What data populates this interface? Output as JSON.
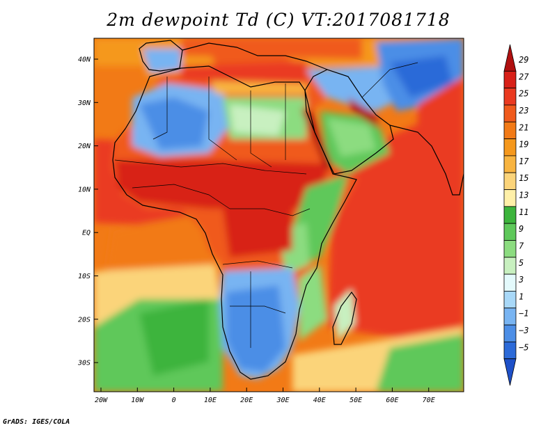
{
  "title": "2m dewpoint Td (C) VT:2017081718",
  "footer": "GrADS: IGES/COLA",
  "axes": {
    "x_ticks": [
      "20W",
      "10W",
      "0",
      "10E",
      "20E",
      "30E",
      "40E",
      "50E",
      "60E",
      "70E"
    ],
    "y_ticks": [
      "40N",
      "30N",
      "20N",
      "10N",
      "EQ",
      "10S",
      "20S",
      "30S"
    ]
  },
  "colorbar": {
    "labels": [
      "29",
      "27",
      "25",
      "23",
      "21",
      "19",
      "17",
      "15",
      "13",
      "11",
      "9",
      "7",
      "5",
      "3",
      "1",
      "−1",
      "−3",
      "−5"
    ],
    "colors": [
      "#b01010",
      "#d82018",
      "#ea3a20",
      "#f05a1c",
      "#f27a16",
      "#f5981c",
      "#f8b440",
      "#fbd47a",
      "#fff0a8",
      "#3cb43c",
      "#5ec85a",
      "#8cdc80",
      "#c8f0c0",
      "#e4fafc",
      "#a8d8f8",
      "#78b4f2",
      "#4c8ee6",
      "#2c6ad8",
      "#1e50c8"
    ]
  }
}
